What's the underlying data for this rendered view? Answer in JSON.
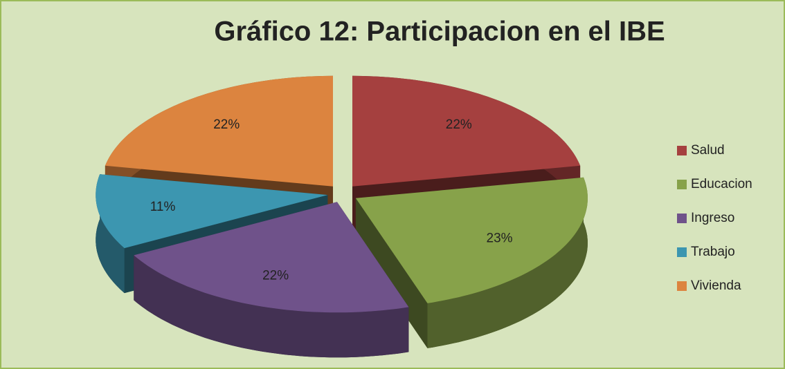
{
  "chart_data": {
    "type": "pie",
    "title": "Gráfico 12: Participacion en el IBE",
    "categories": [
      "Salud",
      "Educacion",
      "Ingreso",
      "Trabajo",
      "Vivienda"
    ],
    "values": [
      22,
      23,
      22,
      11,
      22
    ],
    "value_labels": [
      "22%",
      "23%",
      "22%",
      "11%",
      "22%"
    ],
    "colors": [
      "#a5403f",
      "#87a24a",
      "#6f528a",
      "#3c96b0",
      "#dc843f"
    ],
    "legend": "right"
  }
}
